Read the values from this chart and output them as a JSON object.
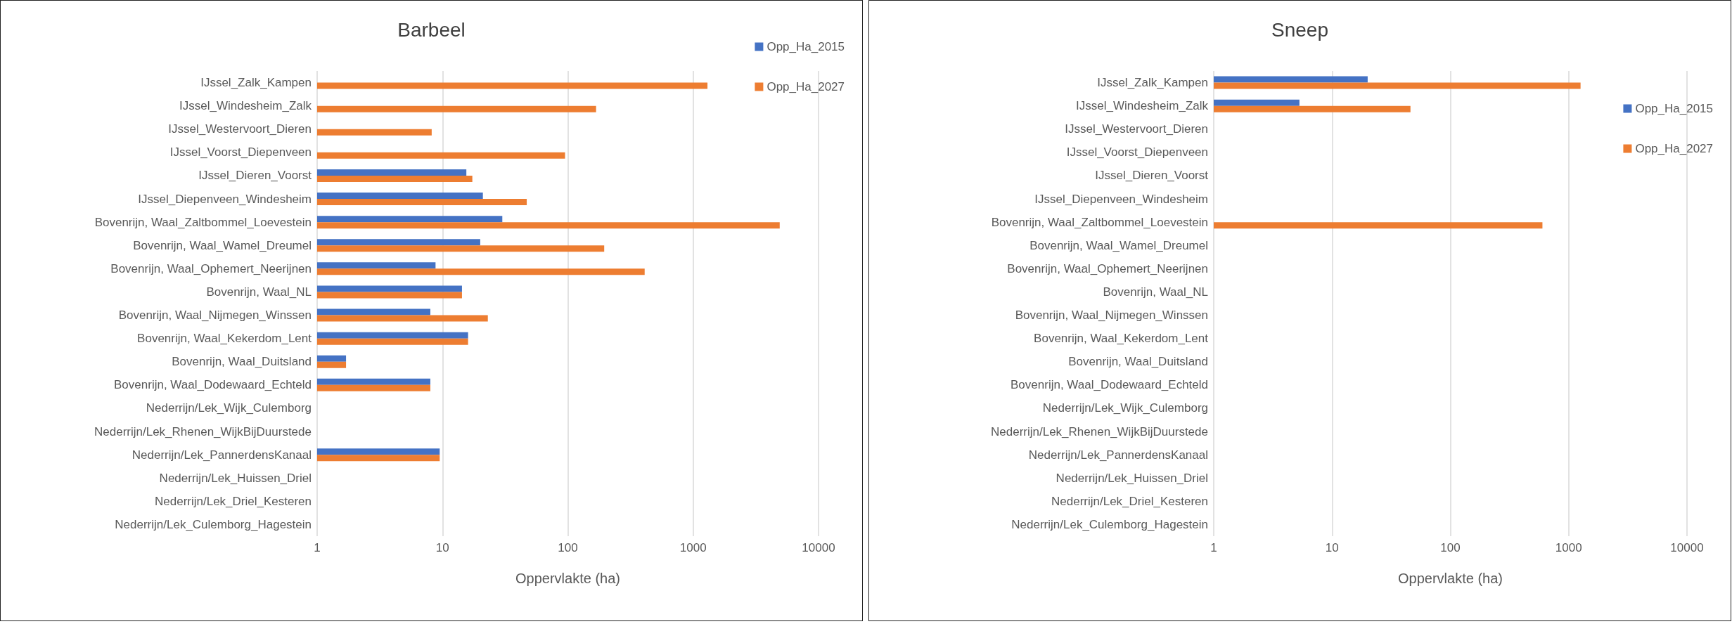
{
  "chart_data": [
    {
      "type": "bar",
      "title": "Barbeel",
      "xlabel": "Oppervlakte (ha)",
      "orientation": "horizontal",
      "log": "x",
      "grid": "x",
      "legend": "top right",
      "categories": [
        "IJssel_Zalk_Kampen",
        "IJssel_Windesheim_Zalk",
        "IJssel_Westervoort_Dieren",
        "IJssel_Voorst_Diepenveen",
        "IJssel_Dieren_Voorst",
        "IJssel_Diepenveen_Windesheim",
        "Bovenrijn, Waal_Zaltbommel_Loevestein",
        "Bovenrijn, Waal_Wamel_Dreumel",
        "Bovenrijn, Waal_Ophemert_Neerijnen",
        "Bovenrijn, Waal_NL",
        "Bovenrijn, Waal_Nijmegen_Winssen",
        "Bovenrijn, Waal_Kekerdom_Lent",
        "Bovenrijn, Waal_Duitsland",
        "Bovenrijn, Waal_Dodewaard_Echteld",
        "Nederrijn/Lek_Wijk_Culemborg",
        "Nederrijn/Lek_Rhenen_WijkBijDuurstede",
        "Nederrijn/Lek_PannerdensKanaal",
        "Nederrijn/Lek_Huissen_Driel",
        "Nederrijn/Lek_Driel_Kesteren",
        "Nederrijn/Lek_Culemborg_Hagestein"
      ],
      "series": [
        {
          "name": "Opp_Ha_2015",
          "color": "#4472c4",
          "values": [
            null,
            null,
            null,
            null,
            15.5,
            21,
            30,
            20,
            8.8,
            14.3,
            8,
            16,
            1.7,
            8,
            null,
            null,
            9.5,
            null,
            null,
            null
          ]
        },
        {
          "name": "Opp_Ha_2027",
          "color": "#ed7d31",
          "values": [
            1300,
            168,
            8.2,
            95,
            17.3,
            47,
            4900,
            195,
            410,
            14.3,
            23,
            16,
            1.7,
            8,
            null,
            null,
            9.5,
            null,
            null,
            null
          ]
        }
      ],
      "xlim": [
        1,
        10000
      ],
      "xticks": [
        1,
        10,
        100,
        1000,
        10000
      ]
    },
    {
      "type": "bar",
      "title": "Sneep",
      "xlabel": "Oppervlakte (ha)",
      "orientation": "horizontal",
      "log": "x",
      "grid": "x",
      "legend": "right",
      "categories": [
        "IJssel_Zalk_Kampen",
        "IJssel_Windesheim_Zalk",
        "IJssel_Westervoort_Dieren",
        "IJssel_Voorst_Diepenveen",
        "IJssel_Dieren_Voorst",
        "IJssel_Diepenveen_Windesheim",
        "Bovenrijn, Waal_Zaltbommel_Loevestein",
        "Bovenrijn, Waal_Wamel_Dreumel",
        "Bovenrijn, Waal_Ophemert_Neerijnen",
        "Bovenrijn, Waal_NL",
        "Bovenrijn, Waal_Nijmegen_Winssen",
        "Bovenrijn, Waal_Kekerdom_Lent",
        "Bovenrijn, Waal_Duitsland",
        "Bovenrijn, Waal_Dodewaard_Echteld",
        "Nederrijn/Lek_Wijk_Culemborg",
        "Nederrijn/Lek_Rhenen_WijkBijDuurstede",
        "Nederrijn/Lek_PannerdensKanaal",
        "Nederrijn/Lek_Huissen_Driel",
        "Nederrijn/Lek_Driel_Kesteren",
        "Nederrijn/Lek_Culemborg_Hagestein"
      ],
      "series": [
        {
          "name": "Opp_Ha_2015",
          "color": "#4472c4",
          "values": [
            20,
            5.3,
            null,
            null,
            null,
            1,
            1,
            null,
            null,
            null,
            null,
            null,
            null,
            null,
            null,
            null,
            null,
            null,
            null,
            null
          ]
        },
        {
          "name": "Opp_Ha_2027",
          "color": "#ed7d31",
          "values": [
            1260,
            46,
            null,
            null,
            null,
            1,
            600,
            null,
            null,
            null,
            null,
            null,
            null,
            null,
            null,
            null,
            null,
            null,
            null,
            null
          ]
        }
      ],
      "xlim": [
        1,
        10000
      ],
      "xticks": [
        1,
        10,
        100,
        1000,
        10000
      ]
    }
  ]
}
